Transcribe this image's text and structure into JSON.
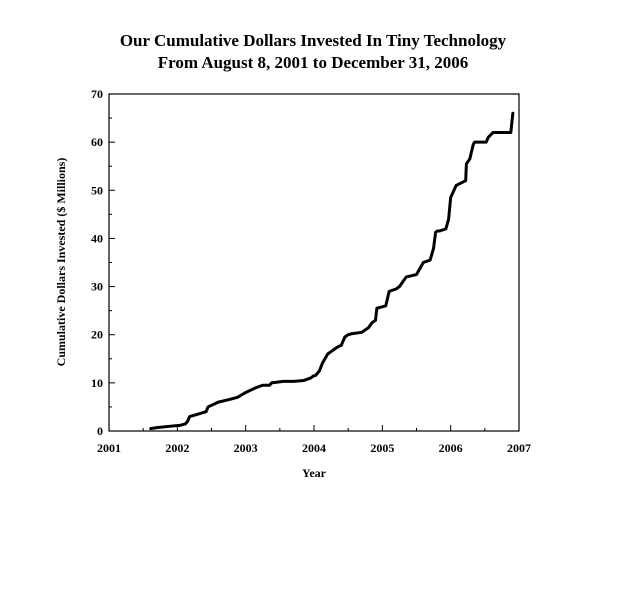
{
  "chart_data": {
    "type": "line",
    "title": "Our Cumulative Dollars Invested In Tiny Technology",
    "subtitle": "From August 8, 2001 to December 31, 2006",
    "xlabel": "Year",
    "ylabel": "Cumulative Dollars Invested ($ Millions)",
    "xlim": [
      2001,
      2007
    ],
    "ylim": [
      0,
      70
    ],
    "x_ticks": [
      "2001",
      "2002",
      "2003",
      "2004",
      "2005",
      "2006",
      "2007"
    ],
    "y_ticks": [
      "0",
      "10",
      "20",
      "30",
      "40",
      "50",
      "60",
      "70"
    ],
    "grid": false,
    "series_color": "#000000",
    "series": [
      {
        "x": [
          2001.61,
          2001.7,
          2001.9,
          2002.05,
          2002.12,
          2002.15,
          2002.18,
          2002.3,
          2002.42,
          2002.45,
          2002.6,
          2002.75,
          2002.88,
          2003.0,
          2003.15,
          2003.25,
          2003.35,
          2003.38,
          2003.55,
          2003.7,
          2003.85,
          2003.95,
          2004.0,
          2004.02,
          2004.08,
          2004.12,
          2004.2,
          2004.25,
          2004.3,
          2004.35,
          2004.4,
          2004.45,
          2004.5,
          2004.55,
          2004.7,
          2004.8,
          2004.85,
          2004.9,
          2004.92,
          2005.0,
          2005.05,
          2005.1,
          2005.2,
          2005.25,
          2005.3,
          2005.35,
          2005.5,
          2005.6,
          2005.7,
          2005.75,
          2005.78,
          2005.8,
          2005.85,
          2005.93,
          2005.97,
          2006.0,
          2006.08,
          2006.15,
          2006.22,
          2006.23,
          2006.28,
          2006.33,
          2006.35,
          2006.52,
          2006.55,
          2006.62,
          2006.75,
          2006.88,
          2006.91
        ],
        "y": [
          0.5,
          0.7,
          1.0,
          1.2,
          1.5,
          2.0,
          3.0,
          3.5,
          4.0,
          5.0,
          6.0,
          6.5,
          7.0,
          8.0,
          9.0,
          9.5,
          9.5,
          10.0,
          10.3,
          10.3,
          10.5,
          11.0,
          11.5,
          11.5,
          12.5,
          14.0,
          16.0,
          16.5,
          17.0,
          17.5,
          17.8,
          19.5,
          20.0,
          20.2,
          20.5,
          21.5,
          22.5,
          23.0,
          25.5,
          25.8,
          26.0,
          29.0,
          29.5,
          30.0,
          31.0,
          32.0,
          32.5,
          35.0,
          35.5,
          38.0,
          41.3,
          41.5,
          41.6,
          42.0,
          44.0,
          48.5,
          51.0,
          51.5,
          52.0,
          55.5,
          56.5,
          59.5,
          60.0,
          60.0,
          61.0,
          62.0,
          62.0,
          62.0,
          66.0
        ]
      }
    ]
  }
}
